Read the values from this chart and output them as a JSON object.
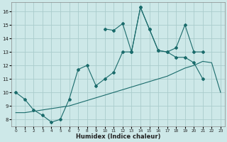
{
  "xlabel": "Humidex (Indice chaleur)",
  "background_color": "#cde8e8",
  "grid_color": "#aacccc",
  "line_color": "#1a6b6b",
  "xlim": [
    -0.5,
    23.5
  ],
  "ylim": [
    7.5,
    16.7
  ],
  "xticks": [
    0,
    1,
    2,
    3,
    4,
    5,
    6,
    7,
    8,
    9,
    10,
    11,
    12,
    13,
    14,
    15,
    16,
    17,
    18,
    19,
    20,
    21,
    22,
    23
  ],
  "yticks": [
    8,
    9,
    10,
    11,
    12,
    13,
    14,
    15,
    16
  ],
  "line_upper_x": [
    10,
    11,
    12,
    13,
    14,
    15,
    16,
    17,
    18,
    19,
    20,
    21,
    22,
    23
  ],
  "line_upper_y": [
    14.7,
    14.6,
    15.1,
    13.0,
    16.3,
    14.7,
    13.1,
    13.0,
    13.3,
    15.0,
    13.0,
    13.0,
    null,
    null
  ],
  "line_mid_x": [
    0,
    1,
    2,
    3,
    4,
    5,
    6,
    7,
    8,
    9,
    10,
    11,
    12,
    13,
    14,
    15,
    16,
    17,
    18,
    19,
    20,
    21
  ],
  "line_mid_y": [
    10.0,
    9.5,
    8.7,
    8.3,
    7.8,
    8.0,
    9.5,
    11.7,
    12.0,
    10.5,
    11.0,
    11.5,
    13.0,
    13.0,
    16.3,
    14.7,
    13.1,
    13.0,
    12.6,
    12.6,
    12.2,
    11.0
  ],
  "line_bot_x": [
    0,
    1,
    2,
    3,
    4,
    5,
    6,
    7,
    8,
    9,
    10,
    11,
    12,
    13,
    14,
    15,
    16,
    17,
    18,
    19,
    20,
    21,
    22,
    23
  ],
  "line_bot_y": [
    8.5,
    8.5,
    8.6,
    8.7,
    8.8,
    8.9,
    9.0,
    9.2,
    9.4,
    9.6,
    9.8,
    10.0,
    10.2,
    10.4,
    10.6,
    10.8,
    11.0,
    11.2,
    11.5,
    11.8,
    12.0,
    12.3,
    12.2,
    10.0
  ]
}
